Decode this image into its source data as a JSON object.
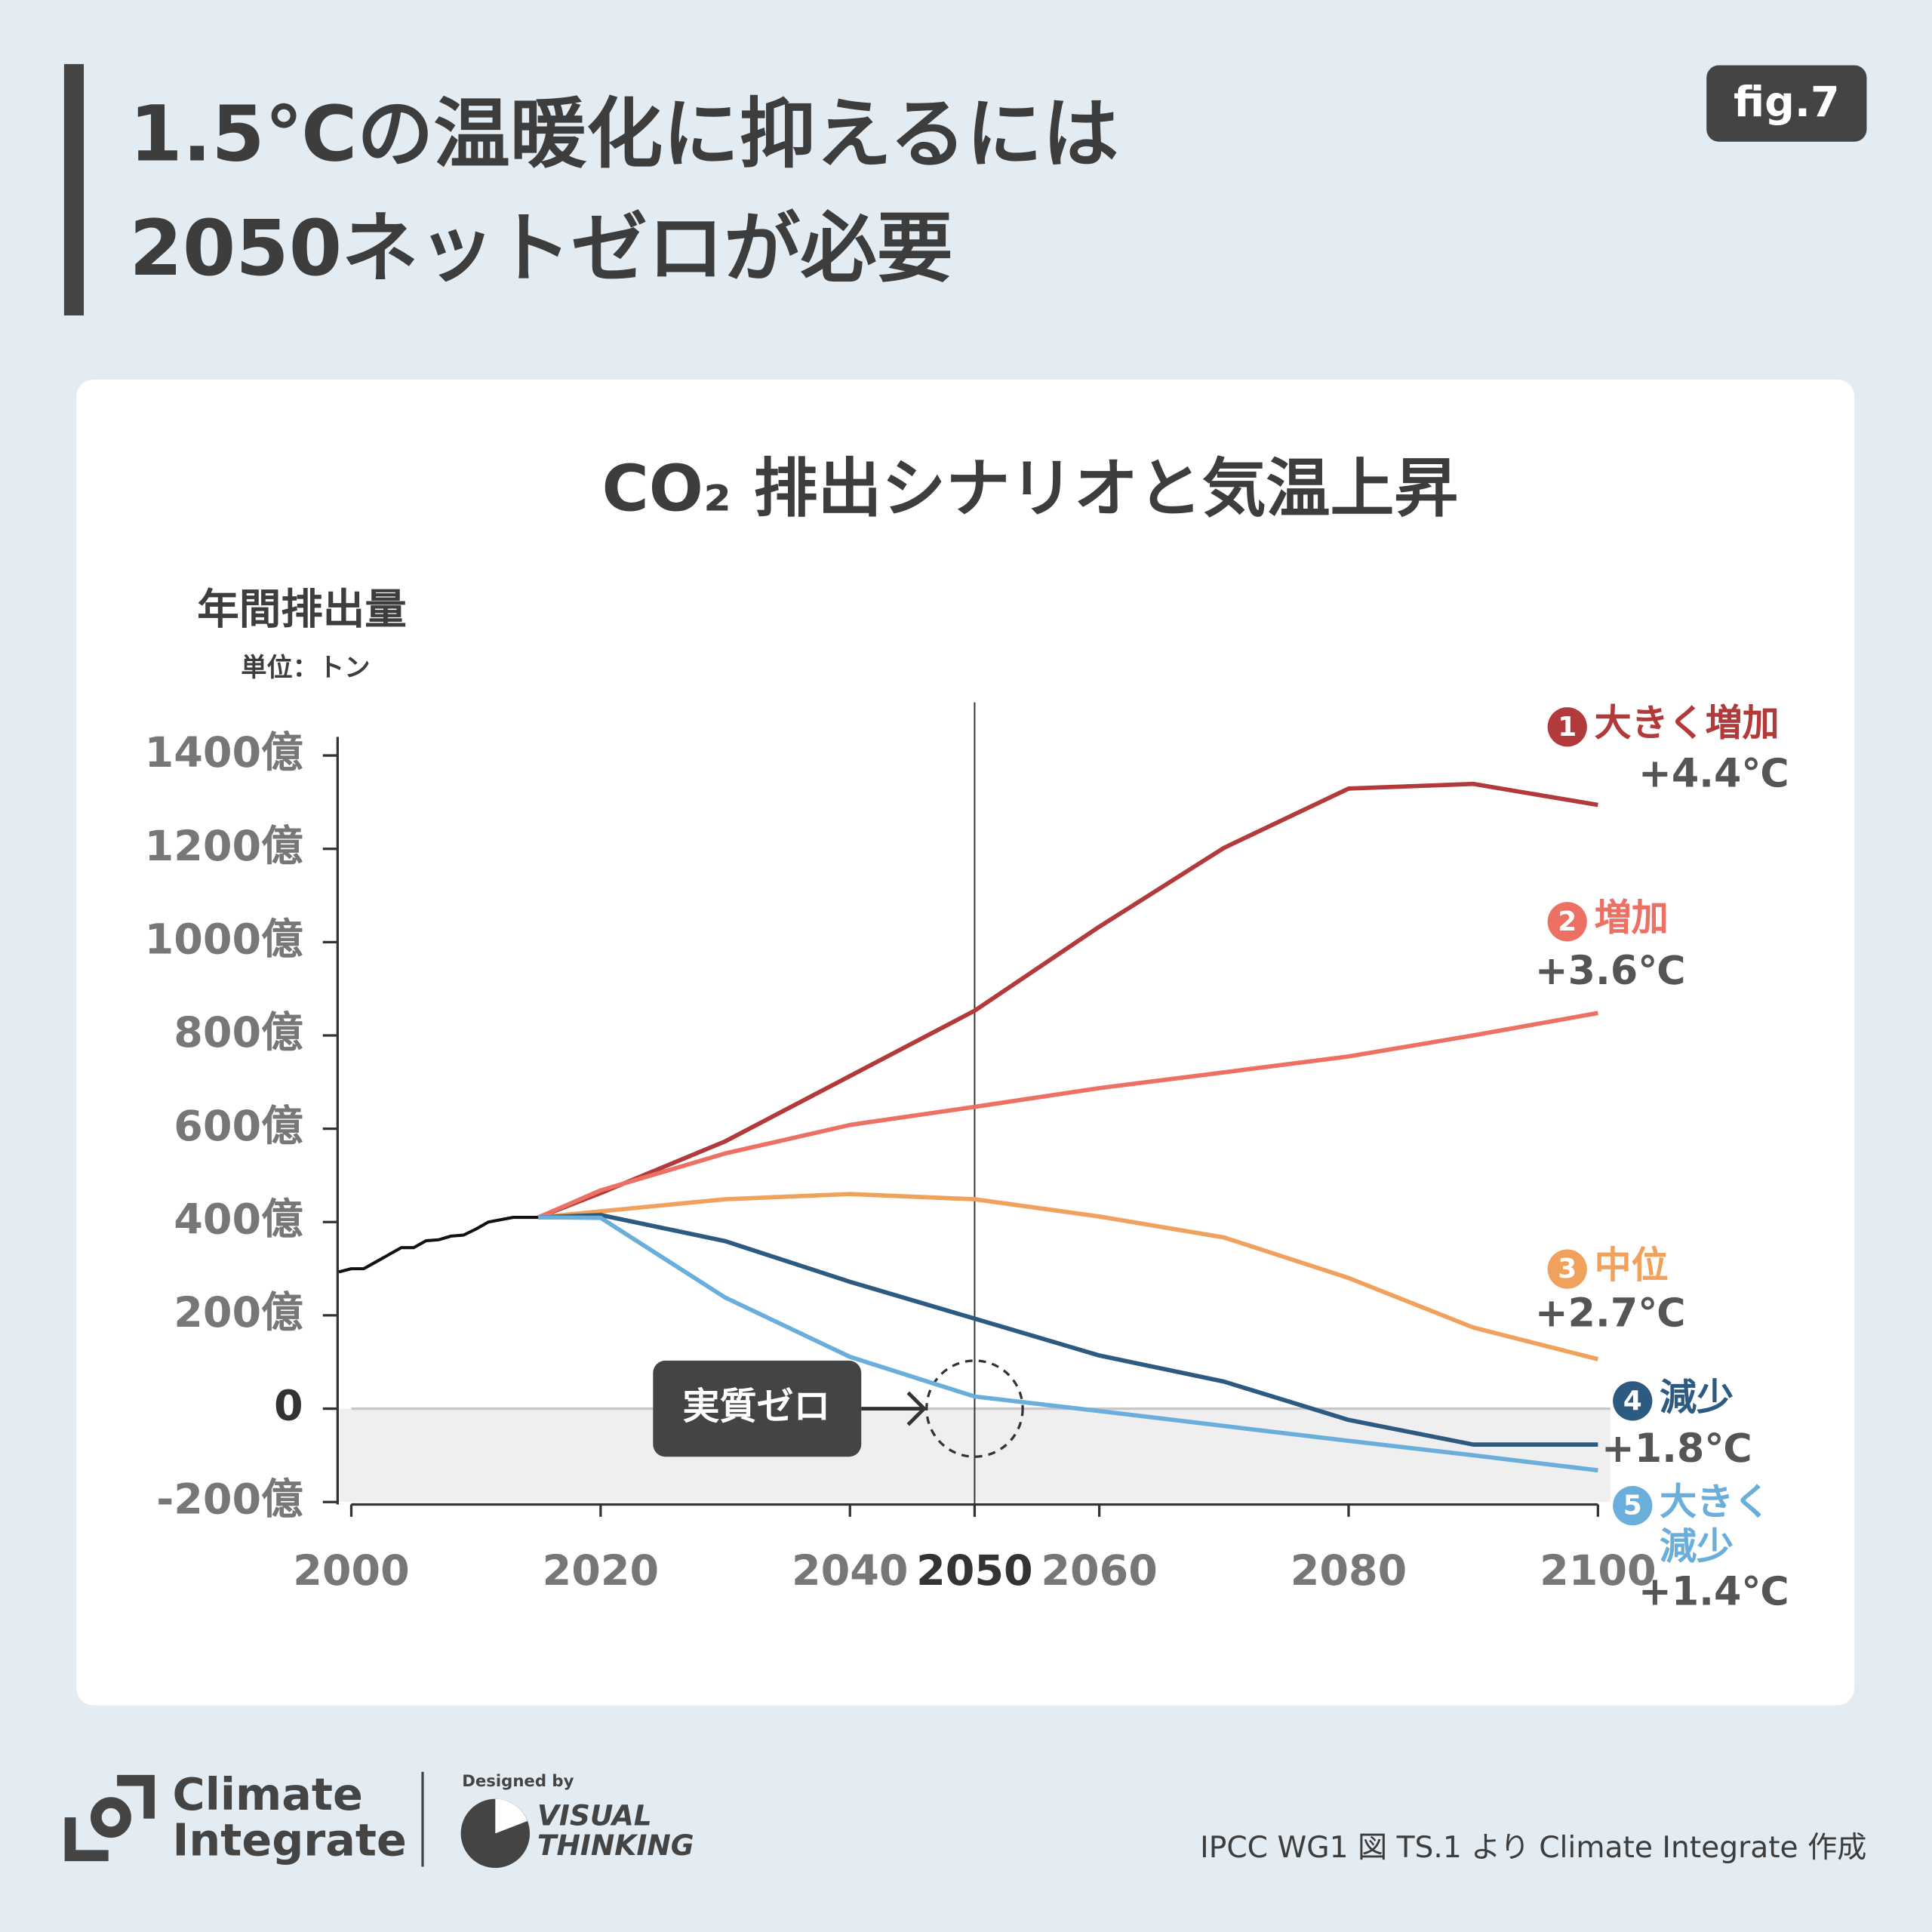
{
  "header": {
    "title_lines": [
      "1.5℃の温暖化に抑えるには",
      "2050ネットゼロが必要"
    ],
    "figure_label": "fig.7"
  },
  "chart_data": {
    "type": "line",
    "title": "CO₂ 排出シナリオと気温上昇",
    "y_axis_label": "年間排出量",
    "y_axis_unit": "単位：トン",
    "ylim": [
      -200,
      1440
    ],
    "yticks": [
      {
        "value": 1400,
        "label": "1400億"
      },
      {
        "value": 1200,
        "label": "1200億"
      },
      {
        "value": 1000,
        "label": "1000億"
      },
      {
        "value": 800,
        "label": "800億"
      },
      {
        "value": 600,
        "label": "600億"
      },
      {
        "value": 400,
        "label": "400億"
      },
      {
        "value": 200,
        "label": "200億"
      },
      0,
      {
        "value": -200,
        "label": "-200億"
      }
    ],
    "xlim": [
      1999,
      2101
    ],
    "xticks": [
      2000,
      2020,
      2040,
      2050,
      2060,
      2080,
      2100
    ],
    "highlight_x": 2050,
    "annotation": "実質ゼロ",
    "history": {
      "color": "#111111",
      "x": [
        1999,
        2000,
        2001,
        2002,
        2003,
        2004,
        2005,
        2006,
        2007,
        2008,
        2009,
        2010,
        2011,
        2012,
        2013,
        2014,
        2015
      ],
      "values": [
        293,
        300,
        300,
        315,
        330,
        345,
        345,
        360,
        362,
        370,
        372,
        385,
        400,
        405,
        410,
        410,
        410
      ]
    },
    "series": [
      {
        "badge": "1",
        "name": "大きく増加",
        "temperature": "+4.4℃",
        "color": "#b33a3a",
        "x": [
          2015,
          2020,
          2030,
          2040,
          2050,
          2060,
          2070,
          2080,
          2090,
          2100
        ],
        "values": [
          410,
          462,
          573,
          713,
          853,
          1033,
          1202,
          1329,
          1339,
          1294
        ]
      },
      {
        "badge": "2",
        "name": "増加",
        "temperature": "+3.6℃",
        "color": "#ec7064",
        "x": [
          2015,
          2020,
          2030,
          2040,
          2050,
          2060,
          2070,
          2080,
          2090,
          2100
        ],
        "values": [
          410,
          468,
          547,
          608,
          647,
          687,
          721,
          755,
          800,
          848
        ]
      },
      {
        "badge": "3",
        "name": "中位",
        "temperature": "+2.7℃",
        "color": "#f0a15c",
        "x": [
          2015,
          2020,
          2030,
          2040,
          2050,
          2060,
          2070,
          2080,
          2090,
          2100
        ],
        "values": [
          410,
          423,
          449,
          460,
          449,
          412,
          367,
          280,
          174,
          106
        ]
      },
      {
        "badge": "4",
        "name": "減少",
        "temperature": "+1.8℃",
        "color": "#2d5a80",
        "x": [
          2015,
          2020,
          2030,
          2040,
          2050,
          2060,
          2070,
          2080,
          2090,
          2100
        ],
        "values": [
          410,
          415,
          359,
          272,
          193,
          114,
          58,
          -24,
          -77,
          -77
        ]
      },
      {
        "badge": "5",
        "name": "大きく減少",
        "temperature": "+1.4℃",
        "color": "#6aaedb",
        "x": [
          2015,
          2020,
          2030,
          2040,
          2050,
          2060,
          2070,
          2080,
          2090,
          2100
        ],
        "values": [
          410,
          409,
          238,
          111,
          26,
          -5,
          -37,
          -69,
          -100,
          -132
        ]
      }
    ]
  },
  "footer": {
    "brand_lines": [
      "Climate",
      "Integrate"
    ],
    "designed_by": "Designed by",
    "designer_lines": [
      "VISUAL",
      "THINKING"
    ],
    "source": "IPCC WG1 図 TS.1 より Climate Integrate 作成"
  }
}
